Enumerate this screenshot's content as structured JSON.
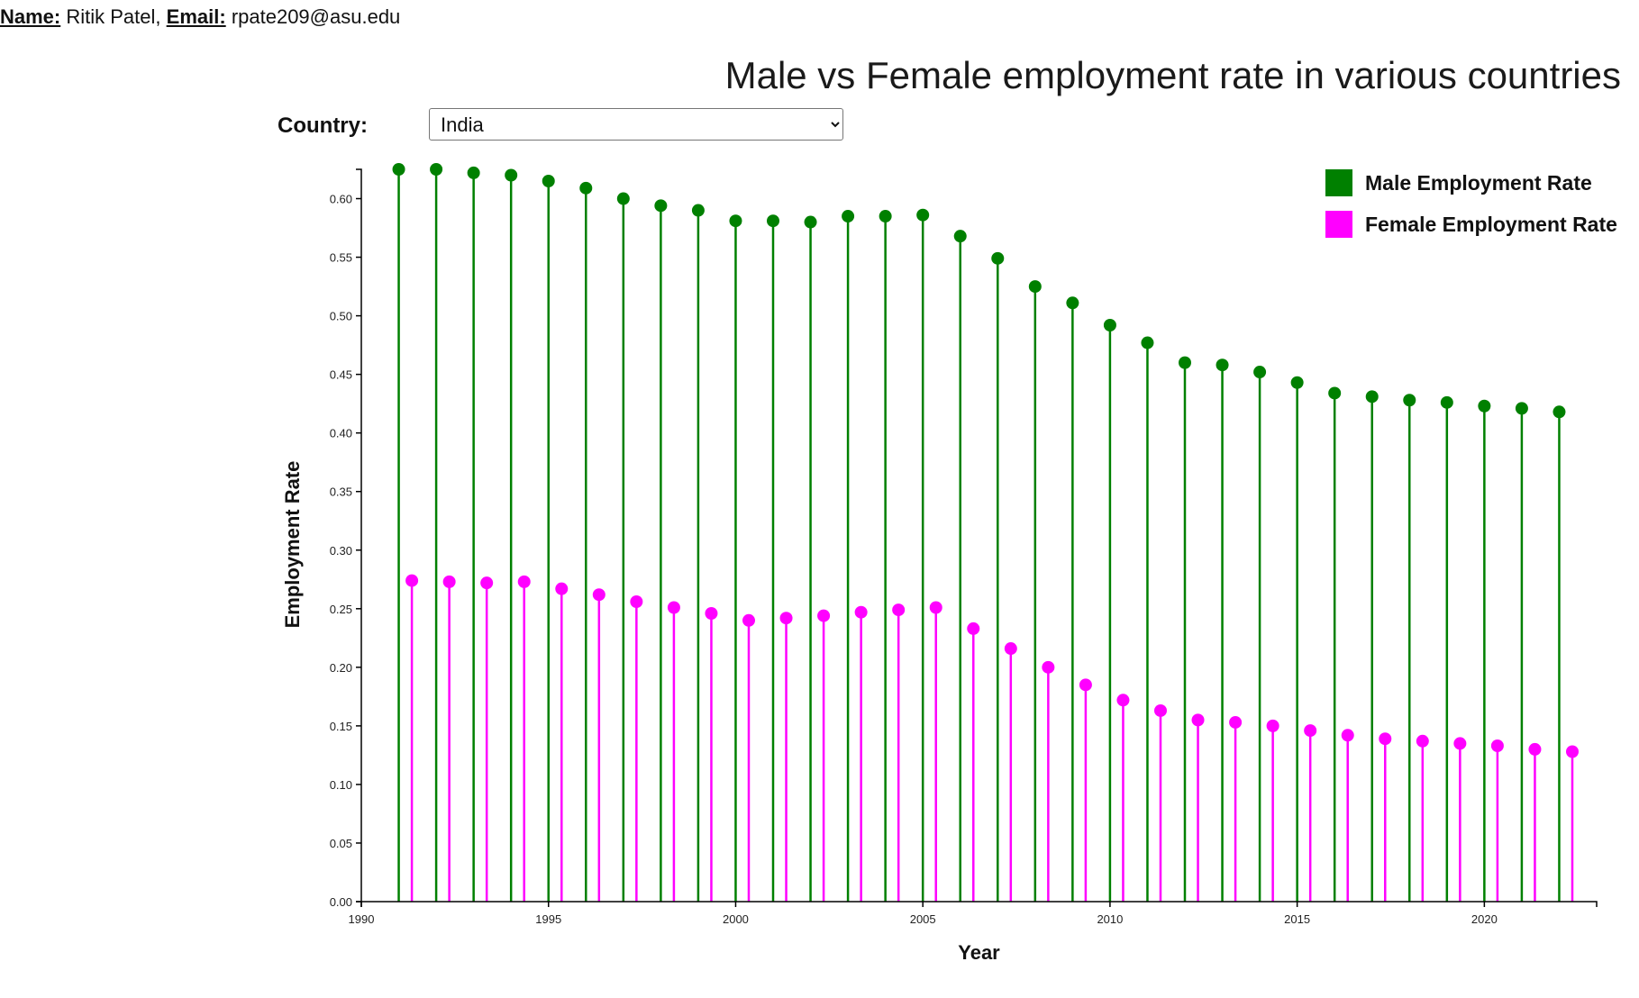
{
  "header": {
    "name_label": "Name:",
    "name_value": "Ritik Patel,",
    "email_label": "Email:",
    "email_value": "rpate209@asu.edu"
  },
  "controls": {
    "country_label": "Country:",
    "country_selected": "India"
  },
  "colors": {
    "male": "#008000",
    "female": "#ff00ff",
    "axis": "#000000"
  },
  "chart_data": {
    "type": "lollipop",
    "title": "Male vs Female employment rate in various countries",
    "xlabel": "Year",
    "ylabel": "Employment Rate",
    "xlim": [
      1990,
      2023
    ],
    "ylim": [
      0,
      0.625
    ],
    "xticks": [
      1990,
      1995,
      2000,
      2005,
      2010,
      2015,
      2020
    ],
    "yticks": [
      0.0,
      0.05,
      0.1,
      0.15,
      0.2,
      0.25,
      0.3,
      0.35,
      0.4,
      0.45,
      0.5,
      0.55,
      0.6
    ],
    "legend_position": "top-right",
    "legend": [
      "Male Employment Rate",
      "Female Employment Rate"
    ],
    "x": [
      1991,
      1992,
      1993,
      1994,
      1995,
      1996,
      1997,
      1998,
      1999,
      2000,
      2001,
      2002,
      2003,
      2004,
      2005,
      2006,
      2007,
      2008,
      2009,
      2010,
      2011,
      2012,
      2013,
      2014,
      2015,
      2016,
      2017,
      2018,
      2019,
      2020,
      2021,
      2022
    ],
    "series": [
      {
        "name": "Male Employment Rate",
        "values": [
          0.625,
          0.625,
          0.622,
          0.62,
          0.615,
          0.609,
          0.6,
          0.594,
          0.59,
          0.581,
          0.581,
          0.58,
          0.585,
          0.585,
          0.586,
          0.568,
          0.549,
          0.525,
          0.511,
          0.492,
          0.477,
          0.46,
          0.458,
          0.452,
          0.443,
          0.434,
          0.431,
          0.428,
          0.426,
          0.423,
          0.421,
          0.418
        ]
      },
      {
        "name": "Female Employment Rate",
        "values": [
          0.274,
          0.273,
          0.272,
          0.273,
          0.267,
          0.262,
          0.256,
          0.251,
          0.246,
          0.24,
          0.242,
          0.244,
          0.247,
          0.249,
          0.251,
          0.233,
          0.216,
          0.2,
          0.185,
          0.172,
          0.163,
          0.155,
          0.153,
          0.15,
          0.146,
          0.142,
          0.139,
          0.137,
          0.135,
          0.133,
          0.13,
          0.128
        ]
      }
    ]
  }
}
